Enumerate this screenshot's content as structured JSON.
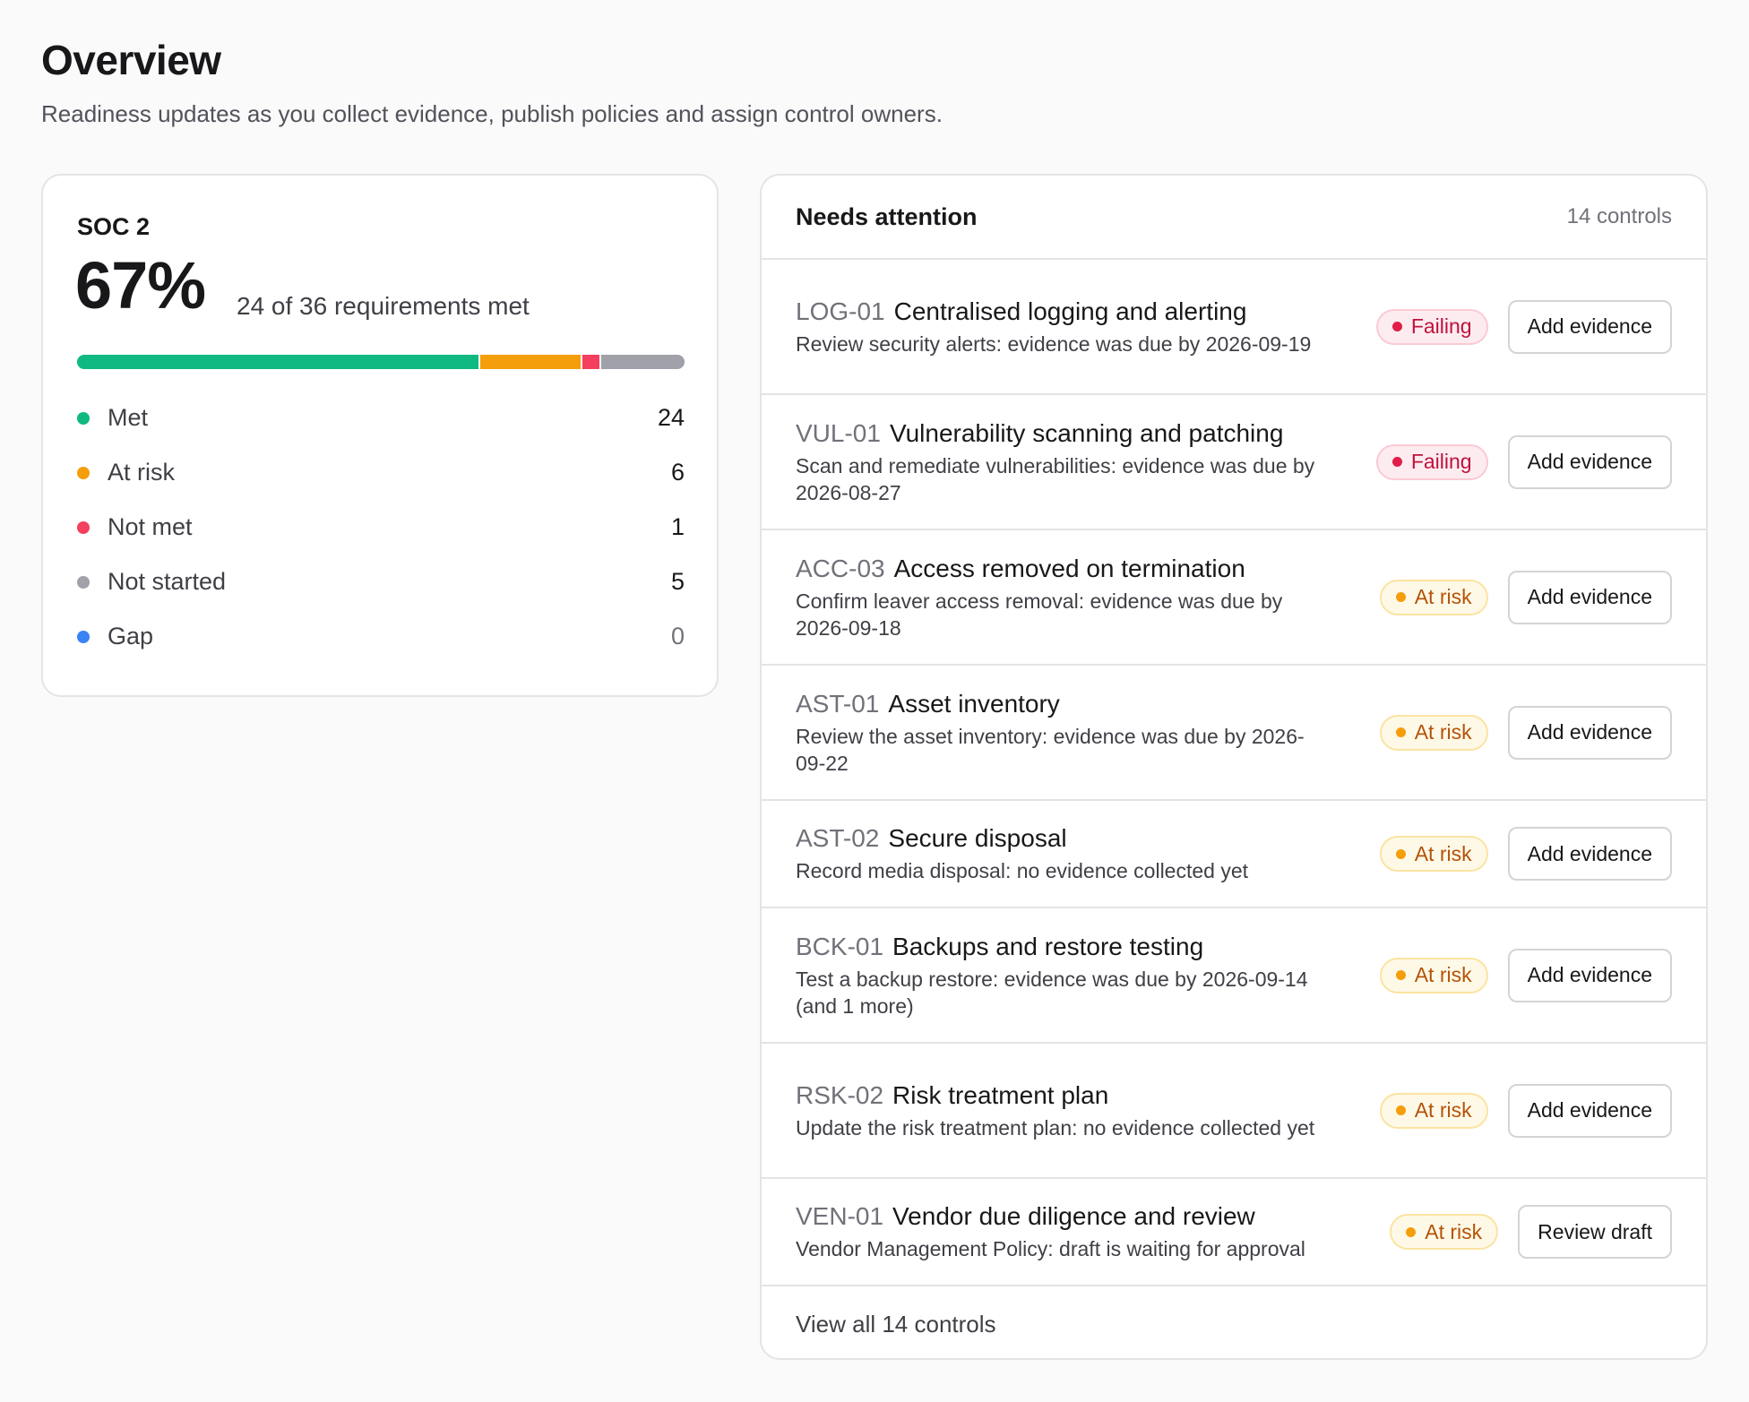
{
  "page": {
    "title": "Overview",
    "subtitle": "Readiness updates as you collect evidence, publish policies and assign control owners."
  },
  "framework": {
    "name": "SOC 2",
    "percent": "67%",
    "summary": "24 of 36 requirements met",
    "progress_fractions": {
      "met": 0.667,
      "at_risk": 0.167,
      "not_met": 0.028,
      "not_started": 0.139,
      "gap": 0
    },
    "legend": [
      {
        "label": "Met",
        "count": "24",
        "color": "#10b981"
      },
      {
        "label": "At risk",
        "count": "6",
        "color": "#f59e0b"
      },
      {
        "label": "Not met",
        "count": "1",
        "color": "#f43f5e"
      },
      {
        "label": "Not started",
        "count": "5",
        "color": "#a1a1aa"
      },
      {
        "label": "Gap",
        "count": "0",
        "color": "#3b82f6"
      }
    ]
  },
  "attention": {
    "title": "Needs attention",
    "count": "14 controls",
    "items": [
      {
        "code": "LOG-01",
        "name": "Centralised logging and alerting",
        "desc": "Review security alerts: evidence was due by 2026-09-19",
        "status": "Failing",
        "action": "Add evidence"
      },
      {
        "code": "VUL-01",
        "name": "Vulnerability scanning and patching",
        "desc": "Scan and remediate vulnerabilities: evidence was due by 2026-08-27",
        "status": "Failing",
        "action": "Add evidence"
      },
      {
        "code": "ACC-03",
        "name": "Access removed on termination",
        "desc": "Confirm leaver access removal: evidence was due by 2026-09-18",
        "status": "At risk",
        "action": "Add evidence"
      },
      {
        "code": "AST-01",
        "name": "Asset inventory",
        "desc": "Review the asset inventory: evidence was due by 2026-09-22",
        "status": "At risk",
        "action": "Add evidence"
      },
      {
        "code": "AST-02",
        "name": "Secure disposal",
        "desc": "Record media disposal: no evidence collected yet",
        "status": "At risk",
        "action": "Add evidence"
      },
      {
        "code": "BCK-01",
        "name": "Backups and restore testing",
        "desc": "Test a backup restore: evidence was due by 2026-09-14 (and 1 more)",
        "status": "At risk",
        "action": "Add evidence"
      },
      {
        "code": "RSK-02",
        "name": "Risk treatment plan",
        "desc": "Update the risk treatment plan: no evidence collected yet",
        "status": "At risk",
        "action": "Add evidence"
      },
      {
        "code": "VEN-01",
        "name": "Vendor due diligence and review",
        "desc": "Vendor Management Policy: draft is waiting for approval",
        "status": "At risk",
        "action": "Review draft"
      }
    ],
    "view_all": "View all 14 controls"
  }
}
